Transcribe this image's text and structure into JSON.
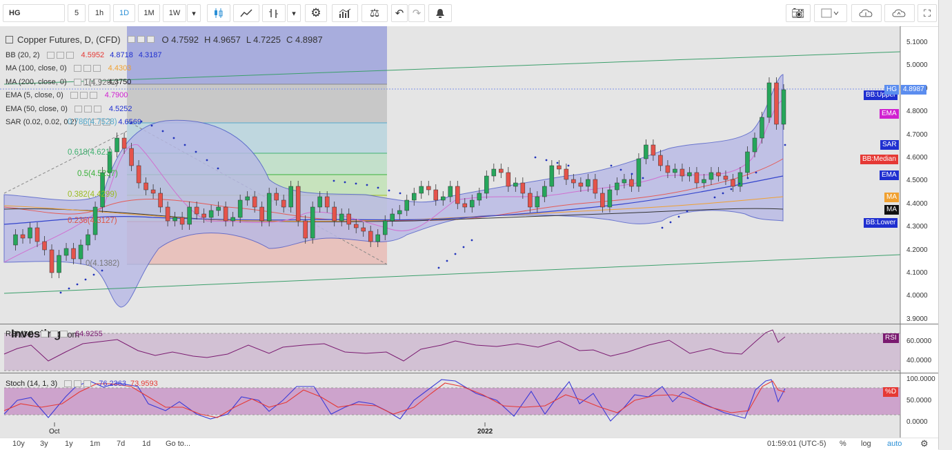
{
  "toolbar": {
    "symbol": "HG",
    "intervals": [
      "5",
      "1h",
      "1D",
      "1M",
      "1W"
    ],
    "active_interval": "1D"
  },
  "legend": {
    "title": "Copper Futures, D, (CFD)",
    "ohlc": {
      "o": "O 4.7592",
      "h": "H 4.9657",
      "l": "L 4.7225",
      "c": "C 4.8987"
    },
    "indicators": [
      {
        "name": "BB (20, 2)",
        "values": [
          "4.5952",
          "4.8718",
          "4.3187"
        ],
        "colors": [
          "#e53935",
          "#1f2fd0",
          "#1f2fd0"
        ]
      },
      {
        "name": "MA (100, close, 0)",
        "values": [
          "4.4303"
        ],
        "colors": [
          "#f0a030"
        ]
      },
      {
        "name": "MA (200, close, 0)",
        "values": [
          "4.3750"
        ],
        "colors": [
          "#111111"
        ]
      },
      {
        "name": "EMA (5, close, 0)",
        "values": [
          "4.7900"
        ],
        "colors": [
          "#d020d0"
        ]
      },
      {
        "name": "EMA (50, close, 0)",
        "values": [
          "4.5252"
        ],
        "colors": [
          "#1f2fd0"
        ]
      },
      {
        "name": "SAR (0.02, 0.02, 0.2)",
        "values": [
          "4.6569"
        ],
        "colors": [
          "#1f2fd0"
        ]
      }
    ]
  },
  "fibonacci": [
    {
      "label": "1(4.9202)",
      "color": "#777777"
    },
    {
      "label": "0.786(4.7528)",
      "color": "#55aacc"
    },
    {
      "label": "0.618(4.621)",
      "color": "#40b070"
    },
    {
      "label": "0.5(4.5237)",
      "color": "#3ab03a"
    },
    {
      "label": "0.382(4.4299)",
      "color": "#99bb22"
    },
    {
      "label": "0.236(4.3127)",
      "color": "#dd5544"
    },
    {
      "label": "0(4.1382)",
      "color": "#777777"
    }
  ],
  "price_axis": [
    "5.1000",
    "5.0000",
    "4.9000",
    "4.8000",
    "4.7000",
    "4.6000",
    "4.5000",
    "4.4000",
    "4.3000",
    "4.2000",
    "4.1000",
    "4.0000",
    "3.9000"
  ],
  "price_labels": [
    {
      "text": "BB:Upper",
      "color": "#1f2fd0"
    },
    {
      "text": "HG",
      "color": "#5b8def"
    },
    {
      "text": "4.8987",
      "color": "#5b8def"
    },
    {
      "text": "EMA",
      "color": "#d020d0"
    },
    {
      "text": "SAR",
      "color": "#1f2fd0"
    },
    {
      "text": "BB:Median",
      "color": "#e53935"
    },
    {
      "text": "EMA",
      "color": "#1f2fd0"
    },
    {
      "text": "MA",
      "color": "#f0a030"
    },
    {
      "text": "MA",
      "color": "#111111"
    },
    {
      "text": "BB:Lower",
      "color": "#1f2fd0"
    }
  ],
  "rsi": {
    "name": "RSI (14)",
    "value": "64.9255",
    "axis": [
      "60.0000",
      "40.0000"
    ],
    "tag": "RSI",
    "color": "#7a1a70"
  },
  "stoch": {
    "name": "Stoch (14, 1, 3)",
    "k_value": "76.2363",
    "d_value": "73.9593",
    "axis": [
      "100.0000",
      "50.0000",
      "0.0000"
    ],
    "tag": "%D",
    "k_color": "#3a3ad8",
    "d_color": "#e53935"
  },
  "time_axis": [
    "Oct",
    "2022"
  ],
  "watermark": "Investing.com",
  "bottom_bar": {
    "ranges": [
      "10y",
      "3y",
      "1y",
      "1m",
      "7d",
      "1d",
      "Go to..."
    ],
    "time": "01:59:01 (UTC-5)",
    "options": [
      "%",
      "log",
      "auto"
    ],
    "active_option": "auto"
  },
  "colors": {
    "up": "#26a65b",
    "down": "#e5534b",
    "bb_fill": "#b7b9e6",
    "fib_box": "#9ea3dc"
  }
}
